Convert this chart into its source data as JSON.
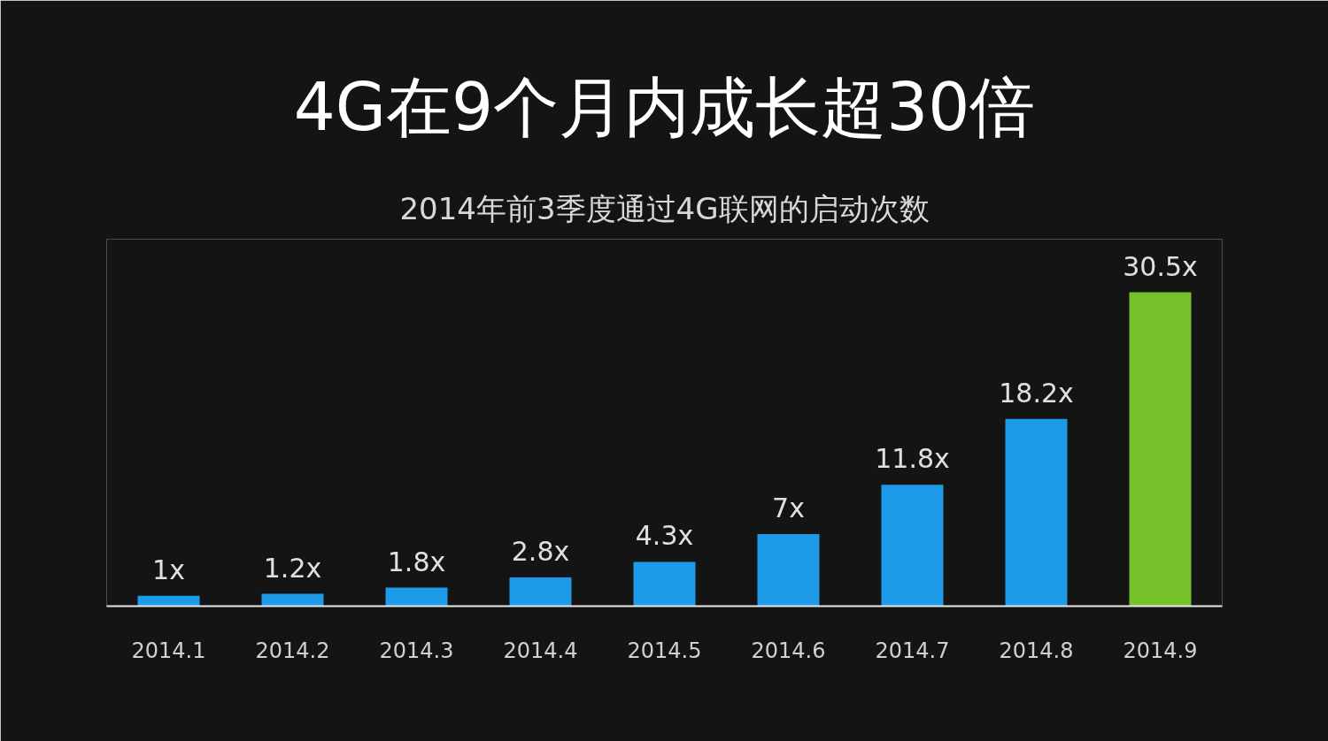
{
  "chart_data": {
    "type": "bar",
    "title": "4G在9个月内成长超30倍",
    "subtitle": "2014年前3季度通过4G联网的启动次数",
    "categories": [
      "2014.1",
      "2014.2",
      "2014.3",
      "2014.4",
      "2014.5",
      "2014.6",
      "2014.7",
      "2014.8",
      "2014.9"
    ],
    "values": [
      1,
      1.2,
      1.8,
      2.8,
      4.3,
      7,
      11.8,
      18.2,
      30.5
    ],
    "value_labels": [
      "1x",
      "1.2x",
      "1.8x",
      "2.8x",
      "4.3x",
      "7x",
      "11.8x",
      "18.2x",
      "30.5x"
    ],
    "colors": [
      "#1e9be8",
      "#1e9be8",
      "#1e9be8",
      "#1e9be8",
      "#1e9be8",
      "#1e9be8",
      "#1e9be8",
      "#1e9be8",
      "#76c22a"
    ]
  }
}
